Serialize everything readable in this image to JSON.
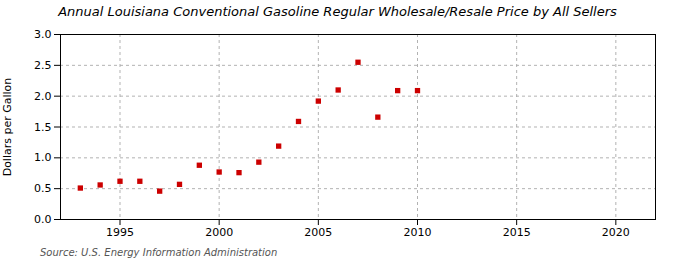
{
  "chart_data": {
    "type": "scatter",
    "title": "Annual Louisiana Conventional Gasoline Regular Wholesale/Resale Price by All Sellers",
    "ylabel": "Dollars per Gallon",
    "source": "Source: U.S. Energy Information Administration",
    "x": [
      1993,
      1994,
      1995,
      1996,
      1997,
      1998,
      1999,
      2000,
      2001,
      2002,
      2003,
      2004,
      2005,
      2006,
      2007,
      2008,
      2009,
      2010
    ],
    "values": [
      0.51,
      0.56,
      0.62,
      0.62,
      0.46,
      0.57,
      0.88,
      0.77,
      0.76,
      0.93,
      1.19,
      1.59,
      1.92,
      2.1,
      2.55,
      1.66,
      2.09,
      2.09
    ],
    "color": "#cc0000",
    "marker": "square",
    "grid": true,
    "xlim": [
      1992,
      2022
    ],
    "xticks": [
      1995,
      2000,
      2005,
      2010,
      2015,
      2020
    ],
    "ylim": [
      0.0,
      3.0
    ],
    "yticks": [
      {
        "value": 0,
        "label": "0.0"
      },
      0.5,
      {
        "value": 1,
        "label": "1.0"
      },
      1.5,
      {
        "value": 2,
        "label": "2.0"
      },
      2.5,
      {
        "value": 3,
        "label": "3.0"
      }
    ]
  }
}
